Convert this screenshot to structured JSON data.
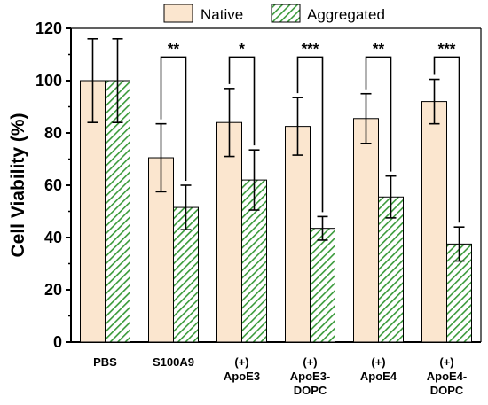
{
  "chart_data": {
    "type": "bar",
    "ylabel": "Cell Viability (%)",
    "ylim": [
      0,
      120
    ],
    "yticks": [
      0,
      20,
      40,
      60,
      80,
      100,
      120
    ],
    "categories": [
      [
        "PBS"
      ],
      [
        "S100A9"
      ],
      [
        "(+)",
        "ApoE3"
      ],
      [
        "(+)",
        "ApoE3-",
        "DOPC"
      ],
      [
        "(+)",
        "ApoE4"
      ],
      [
        "(+)",
        "ApoE4-",
        "DOPC"
      ]
    ],
    "legend_position": "top",
    "series": [
      {
        "name": "Native",
        "color": "#fbe6cf",
        "pattern": "solid",
        "values": [
          100,
          70.5,
          84,
          82.5,
          85.5,
          92
        ],
        "errors": [
          16,
          13,
          13,
          11,
          9.5,
          8.5
        ]
      },
      {
        "name": "Aggregated",
        "color": "#3a9a3a",
        "pattern": "diagonal-hatch",
        "values": [
          100,
          51.5,
          62,
          43.5,
          55.5,
          37.5
        ],
        "errors": [
          16,
          8.5,
          11.5,
          4.5,
          8,
          6.5
        ]
      }
    ],
    "significance": [
      "",
      "**",
      "*",
      "***",
      "**",
      "***"
    ]
  }
}
